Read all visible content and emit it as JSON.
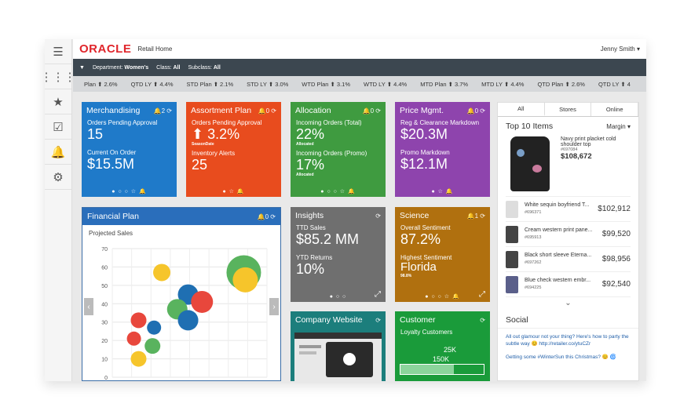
{
  "header": {
    "logo": "ORACLE",
    "app_title": "Retail Home",
    "user": "Jenny Smith ▾"
  },
  "filters": {
    "department_label": "Department:",
    "department": "Women's",
    "class_label": "Class:",
    "class": "All",
    "subclass_label": "Subclass:",
    "subclass": "All"
  },
  "ticker": [
    "Plan ⬆ 2.6%",
    "QTD LY ⬆ 4.4%",
    "STD Plan ⬆ 2.1%",
    "STD LY ⬆ 3.0%",
    "WTD Plan ⬆ 3.1%",
    "WTD LY ⬆ 4.4%",
    "MTD Plan ⬆ 3.7%",
    "MTD LY ⬆ 4.4%",
    "QTD Plan ⬆ 2.6%",
    "QTD LY ⬆ 4"
  ],
  "tiles": {
    "merch": {
      "title": "Merchandising",
      "icons": "🔔2 ⟳",
      "l1": "Orders Pending Approval",
      "v1": "15",
      "l2": "Current On Order",
      "v2": "$15.5M",
      "dots": "● ○ ○ ☆ 🔔",
      "color": "#1f7ac9"
    },
    "assort": {
      "title": "Assortment Plan",
      "icons": "🔔0 ⟳",
      "l1": "Orders Pending Approval",
      "v1": "⬆ 3.2%",
      "sub1": "SeasonDate",
      "l2": "Inventory Alerts",
      "v2": "25",
      "dots": "● ☆ 🔔",
      "color": "#e84c1e"
    },
    "alloc": {
      "title": "Allocation",
      "icons": "🔔0 ⟳",
      "l1": "Incoming Orders (Total)",
      "v1": "22%",
      "sub1": "Allocated",
      "l2": "Incoming Orders (Promo)",
      "v2": "17%",
      "sub2": "Allocated",
      "dots": "● ○ ○ ☆ 🔔",
      "color": "#3f9b40"
    },
    "price": {
      "title": "Price Mgmt.",
      "icons": "🔔0 ⟳",
      "l1": "Reg & Clearance Markdown",
      "v1": "$20.3M",
      "l2": "Promo Markdown",
      "v2": "$12.1M",
      "dots": "● ☆ 🔔",
      "color": "#8e44ad"
    },
    "insights": {
      "title": "Insights",
      "icons": "⟳",
      "l1": "TTD Sales",
      "v1": "$85.2 MM",
      "l2": "YTD Returns",
      "v2": "10%",
      "dots": "● ○ ○",
      "color": "#6f6f6f"
    },
    "science": {
      "title": "Science",
      "icons": "🔔1 ⟳",
      "l1": "Overall Sentiment",
      "v1": "87.2%",
      "l2": "Highest Sentiment",
      "v2": "Florida",
      "sub2": "98.8%",
      "dots": "● ○ ○ ☆ 🔔",
      "color": "#b0700f"
    },
    "website": {
      "title": "Company Website",
      "icons": "⟳",
      "color": "#1c7e7c"
    },
    "customer": {
      "title": "Customer",
      "icons": "⟳",
      "l1": "Loyalty Customers",
      "v1": "25K",
      "v2": "150K",
      "color": "#1a9b3a"
    }
  },
  "financial": {
    "title": "Financial Plan",
    "icons": "🔔0 ⟳",
    "subtitle": "Projected Sales",
    "yticks": [
      "70",
      "60",
      "50",
      "40",
      "30",
      "20",
      "10",
      "0"
    ]
  },
  "chart_data": {
    "type": "scatter",
    "title": "Projected Sales",
    "ylim": [
      0,
      70
    ],
    "points": [
      {
        "x": 0.85,
        "y": 57,
        "r": 22,
        "color": "#59b35e"
      },
      {
        "x": 0.86,
        "y": 53,
        "r": 16,
        "color": "#f6c52b"
      },
      {
        "x": 0.32,
        "y": 57,
        "r": 11,
        "color": "#f6c52b"
      },
      {
        "x": 0.49,
        "y": 45,
        "r": 13,
        "color": "#1f6fb2"
      },
      {
        "x": 0.58,
        "y": 41,
        "r": 14,
        "color": "#e8473c"
      },
      {
        "x": 0.42,
        "y": 37,
        "r": 13,
        "color": "#59b35e"
      },
      {
        "x": 0.49,
        "y": 31,
        "r": 13,
        "color": "#1f6fb2"
      },
      {
        "x": 0.17,
        "y": 31,
        "r": 10,
        "color": "#e8473c"
      },
      {
        "x": 0.27,
        "y": 27,
        "r": 9,
        "color": "#1f6fb2"
      },
      {
        "x": 0.14,
        "y": 21,
        "r": 9,
        "color": "#e8473c"
      },
      {
        "x": 0.26,
        "y": 17,
        "r": 10,
        "color": "#59b35e"
      },
      {
        "x": 0.17,
        "y": 10,
        "r": 10,
        "color": "#f6c52b"
      }
    ]
  },
  "right_panel": {
    "tabs": [
      "All",
      "Stores",
      "Online"
    ],
    "title": "Top 10 Items",
    "sort": "Margin ▾",
    "feature": {
      "name": "Navy print placket cold shoulder top",
      "sku": "#697084",
      "value": "$108,672"
    },
    "items": [
      {
        "name": "White sequin boyfriend T...",
        "sku": "#696371",
        "value": "$102,912"
      },
      {
        "name": "Cream western print pane...",
        "sku": "#695913",
        "value": "$99,520"
      },
      {
        "name": "Black short sleeve Eterna...",
        "sku": "#697262",
        "value": "$98,956"
      },
      {
        "name": "Blue check western embr...",
        "sku": "#694225",
        "value": "$92,540"
      }
    ],
    "social_title": "Social",
    "post1": "All out glamour not your thing? Here's how to party the subtle way 😊 http://retailer.co/ytuCZr",
    "post2": "Getting some #WinterSun this Christmas? 😊 🌀"
  }
}
